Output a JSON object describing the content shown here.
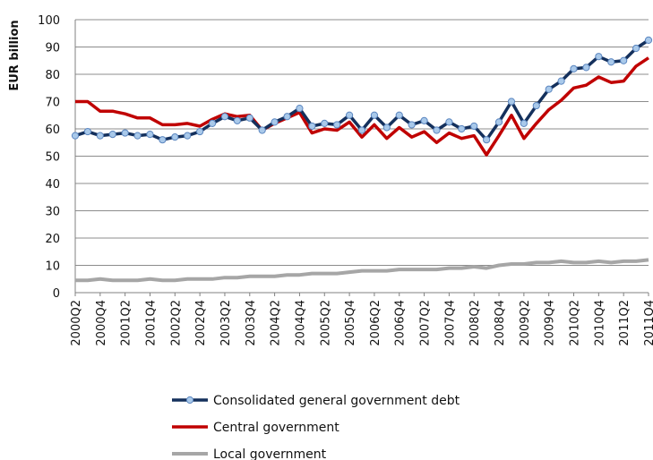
{
  "chart_data": {
    "type": "line",
    "title": "",
    "xlabel": "",
    "ylabel": "EUR billion",
    "ylim": [
      0,
      100
    ],
    "yticks": [
      "0",
      "10",
      "20",
      "30",
      "40",
      "50",
      "60",
      "70",
      "80",
      "90",
      "100"
    ],
    "grid": "horizontal",
    "legend_position": "bottom",
    "x": [
      "2000Q2",
      "2000Q3",
      "2000Q4",
      "2001Q1",
      "2001Q2",
      "2001Q3",
      "2001Q4",
      "2002Q1",
      "2002Q2",
      "2002Q3",
      "2002Q4",
      "2003Q1",
      "2003Q2",
      "2003Q3",
      "2003Q4",
      "2004Q1",
      "2004Q2",
      "2004Q3",
      "2004Q4",
      "2005Q1",
      "2005Q2",
      "2005Q3",
      "2005Q4",
      "2006Q1",
      "2006Q2",
      "2006Q3",
      "2006Q4",
      "2007Q1",
      "2007Q2",
      "2007Q3",
      "2007Q4",
      "2008Q1",
      "2008Q2",
      "2008Q3",
      "2008Q4",
      "2009Q1",
      "2009Q2",
      "2009Q3",
      "2009Q4",
      "2010Q1",
      "2010Q2",
      "2010Q3",
      "2010Q4",
      "2011Q1",
      "2011Q2",
      "2011Q3",
      "2011Q4"
    ],
    "x_tick_labels": [
      "2000Q2",
      "2000Q4",
      "2001Q2",
      "2001Q4",
      "2002Q2",
      "2002Q4",
      "2003Q2",
      "2003Q4",
      "2004Q2",
      "2004Q4",
      "2005Q2",
      "2005Q4",
      "2006Q2",
      "2006Q4",
      "2007Q2",
      "2007Q4",
      "2008Q2",
      "2008Q4",
      "2009Q2",
      "2009Q4",
      "2010Q2",
      "2010Q4",
      "2011Q2",
      "2011Q4"
    ],
    "series": [
      {
        "name": "Consolidated general government debt",
        "color": "#14305c",
        "marker_color": "#a9c9ea",
        "values": [
          57.5,
          59,
          57.5,
          58,
          58.5,
          57.5,
          58,
          56,
          57,
          57.5,
          59,
          62,
          64.5,
          63,
          64,
          59.5,
          62.5,
          64.5,
          67.5,
          61,
          62,
          61.5,
          65,
          59.5,
          65,
          60.5,
          65,
          61.5,
          63,
          59.5,
          62.5,
          60,
          61,
          56,
          62.5,
          70,
          62,
          68.5,
          74.5,
          77.5,
          82,
          82.5,
          86.5,
          84.5,
          85,
          89.5,
          92.5
        ]
      },
      {
        "name": "Central government",
        "color": "#c00000",
        "values": [
          70,
          70,
          66.5,
          66.5,
          65.5,
          64,
          64,
          61.5,
          61.5,
          62,
          61,
          63.5,
          65.5,
          64.5,
          65,
          59.5,
          62,
          64,
          66,
          58.5,
          60,
          59.5,
          62.5,
          57,
          61.5,
          56.5,
          60.5,
          57,
          59,
          55,
          58.5,
          56.5,
          57.5,
          50.5,
          57.5,
          65,
          56.5,
          62,
          67,
          70.5,
          75,
          76,
          79,
          77,
          77.5,
          83,
          86
        ]
      },
      {
        "name": "Local government",
        "color": "#a6a6a6",
        "values": [
          4.5,
          4.5,
          5,
          4.5,
          4.5,
          4.5,
          5,
          4.5,
          4.5,
          5,
          5,
          5,
          5.5,
          5.5,
          6,
          6,
          6,
          6.5,
          6.5,
          7,
          7,
          7,
          7.5,
          8,
          8,
          8,
          8.5,
          8.5,
          8.5,
          8.5,
          9,
          9,
          9.5,
          9,
          10,
          10.5,
          10.5,
          11,
          11,
          11.5,
          11,
          11,
          11.5,
          11,
          11.5,
          11.5,
          12
        ]
      }
    ]
  }
}
